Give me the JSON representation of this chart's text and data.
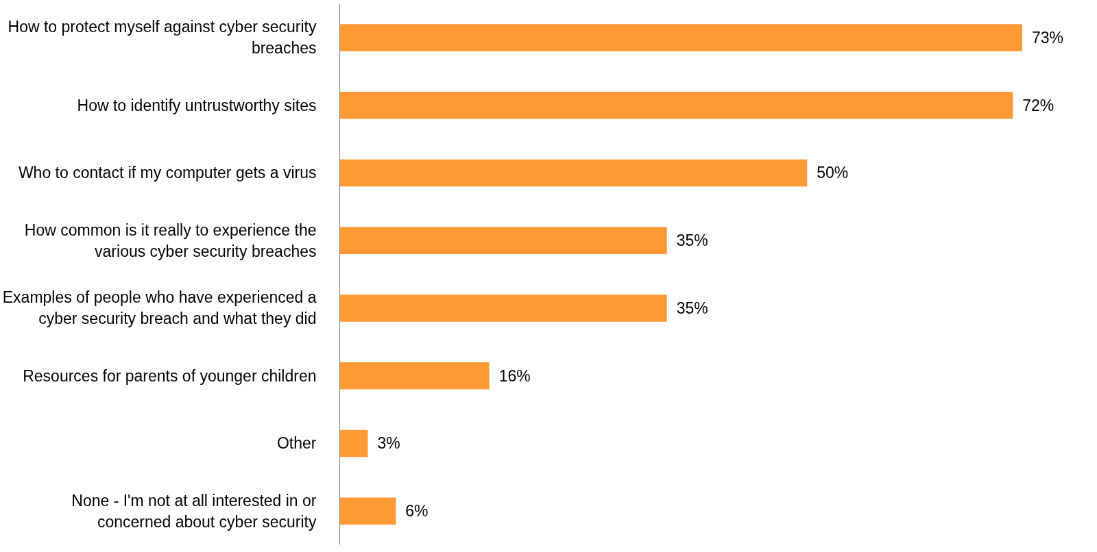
{
  "chart_data": {
    "type": "bar",
    "orientation": "horizontal",
    "grid": false,
    "categories": [
      "How to protect myself against cyber security breaches",
      "How to identify untrustworthy sites",
      "Who to contact if my computer gets a virus",
      "How common is it really to experience the various cyber security breaches",
      "Examples of people who have experienced a cyber security breach and what they did",
      "Resources for parents of younger children",
      "Other",
      "None - I'm not at all interested in or concerned about cyber security"
    ],
    "series": [
      {
        "color": "#ff9933",
        "values": [
          73,
          72,
          50,
          35,
          35,
          16,
          3,
          6
        ],
        "value_labels": [
          "73%",
          "72%",
          "50%",
          "35%",
          "35%",
          "16%",
          "3%",
          "6%"
        ]
      }
    ]
  }
}
